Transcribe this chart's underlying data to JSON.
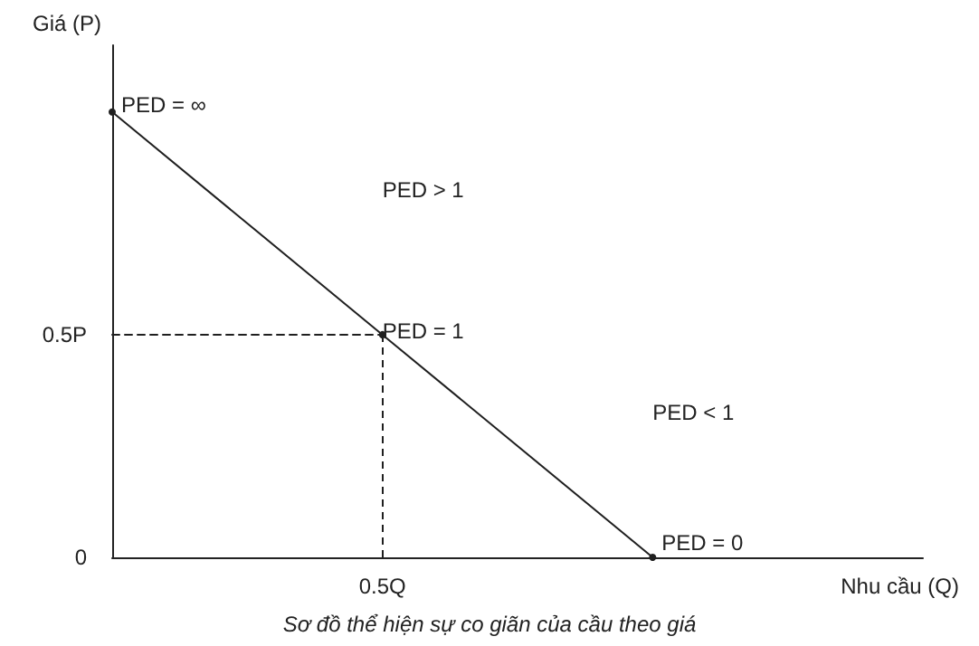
{
  "chart_data": {
    "type": "line",
    "title": "Sơ đồ thể hiện sự co giãn của cầu theo giá",
    "xlabel": "Nhu cầu (Q)",
    "ylabel": "Giá (P)",
    "categories": [
      null,
      "0.5Q",
      null,
      null
    ],
    "series": [
      {
        "values": [
          1,
          0.5,
          0,
          null
        ],
        "color": "#1f1f1f",
        "marker": "circle",
        "line_style": "solid"
      },
      {
        "values": [
          0.5,
          0.5,
          null,
          null
        ],
        "color": "#1f1f1f",
        "marker": "none",
        "line_style": "dashed"
      }
    ],
    "ylim": [
      0,
      1.15
    ],
    "yticks": [
      0,
      {
        "value": 0.5,
        "label": "0.5P"
      }
    ],
    "ref_lines": [
      {
        "axis": "x",
        "value": "0.5Q",
        "line_style": "dashed",
        "color": "#1f1f1f"
      }
    ],
    "annotations": [
      "PED = ∞",
      "PED > 1",
      "PED = 1",
      "PED < 1",
      "PED = 0"
    ]
  }
}
